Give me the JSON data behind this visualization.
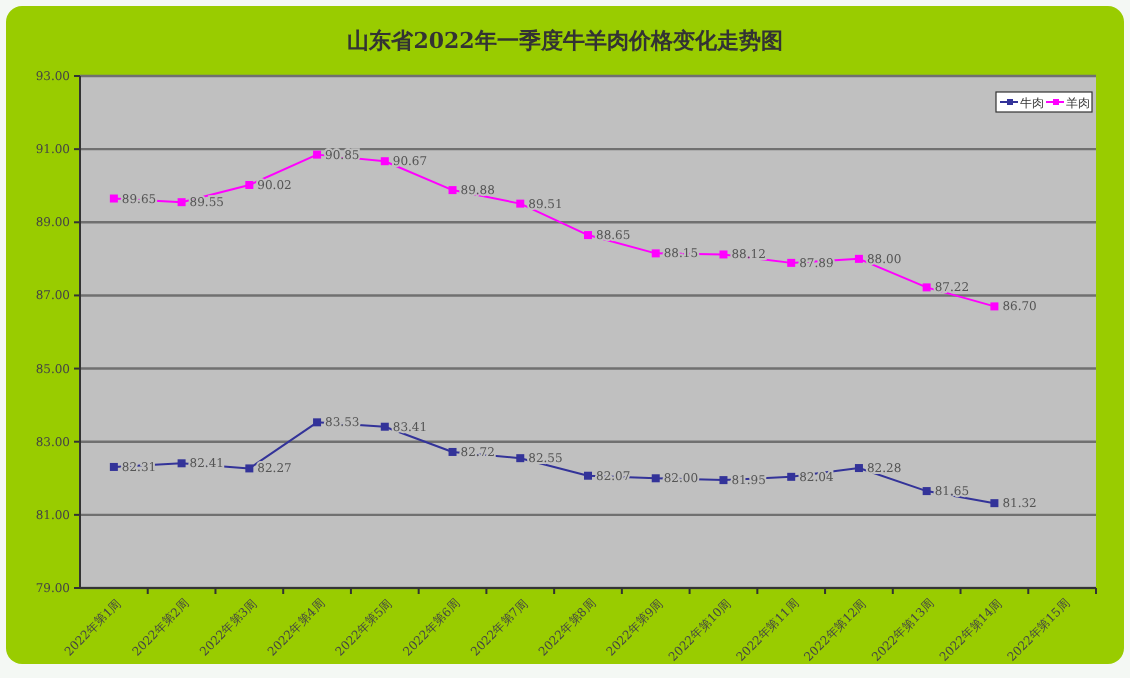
{
  "chart_data": {
    "type": "line",
    "title": "山东省2022年一季度牛羊肉价格变化走势图",
    "categories": [
      "2022年第1周",
      "2022年第2周",
      "2022年第3周",
      "2022年第4周",
      "2022年第5周",
      "2022年第6周",
      "2022年第7周",
      "2022年第8周",
      "2022年第9周",
      "2022年第10周",
      "2022年第11周",
      "2022年第12周",
      "2022年第13周",
      "2022年第14周",
      "2022年第15周"
    ],
    "series": [
      {
        "name": "牛肉",
        "color": "#333399",
        "values": [
          82.31,
          82.41,
          82.27,
          83.53,
          83.41,
          82.72,
          82.55,
          82.07,
          82.0,
          81.95,
          82.04,
          82.28,
          81.65,
          81.32,
          null
        ],
        "value_labels": [
          "82.31",
          "82.41",
          "82.27",
          "83.53",
          "83.41",
          "82.72",
          "82.55",
          "82.07",
          "82.00",
          "81.95",
          "82.04",
          "82.28",
          "81.65",
          "81.32",
          null
        ]
      },
      {
        "name": "羊肉",
        "color": "#ff00ff",
        "values": [
          89.65,
          89.55,
          90.02,
          90.85,
          90.67,
          89.88,
          89.51,
          88.65,
          88.15,
          88.12,
          87.89,
          88.0,
          87.22,
          86.7,
          null
        ],
        "value_labels": [
          "89.65",
          "89.55",
          "90.02",
          "90.85",
          "90.67",
          "89.88",
          "89.51",
          "88.65",
          "88.15",
          "88.12",
          "87.89",
          "88.00",
          "87.22",
          "86.70",
          null
        ]
      }
    ],
    "ylim": [
      79,
      93
    ],
    "yticks": [
      {
        "value": 79,
        "label": "79.00"
      },
      {
        "value": 81,
        "label": "81.00"
      },
      {
        "value": 83,
        "label": "83.00"
      },
      {
        "value": 85,
        "label": "85.00"
      },
      {
        "value": 87,
        "label": "87.00"
      },
      {
        "value": 89,
        "label": "89.00"
      },
      {
        "value": 91,
        "label": "91.00"
      },
      {
        "value": 93,
        "label": "93.00"
      }
    ],
    "grid": "y",
    "legend": "top right",
    "marker": "square",
    "line_style": "solid"
  }
}
